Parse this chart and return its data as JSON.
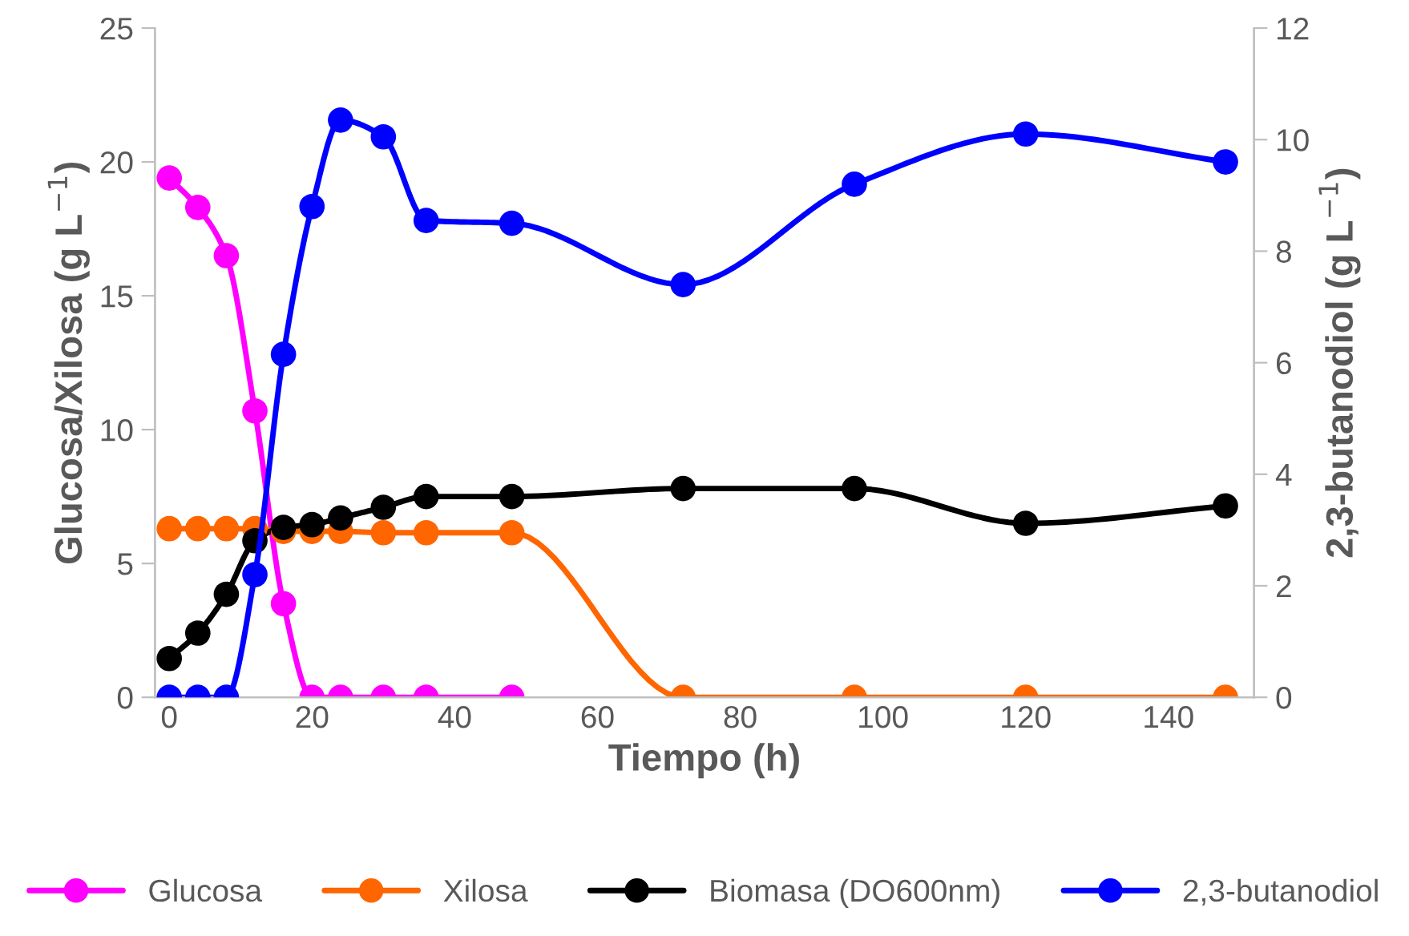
{
  "chart_data": {
    "type": "line",
    "xlabel": "Tiempo (h)",
    "ylabel": "Glucosa/Xilosa (g L$^{−1}$)",
    "y2label": "2,3-butanodiol (g L$^{−1}$)",
    "x": [
      0,
      4,
      8,
      12,
      16,
      20,
      24,
      30,
      36,
      48,
      72,
      96,
      120,
      148
    ],
    "series": [
      {
        "name": "Glucosa",
        "color": "#ff00ff",
        "x": [
          0,
          4,
          8,
          12,
          16,
          20,
          24,
          30,
          36,
          48
        ],
        "values": [
          19.4,
          18.3,
          16.5,
          10.7,
          3.5,
          0,
          0,
          0,
          0,
          0
        ]
      },
      {
        "name": "Xilosa",
        "color": "#ff6600",
        "values": [
          6.3,
          6.3,
          6.3,
          6.3,
          6.2,
          6.2,
          6.2,
          6.15,
          6.15,
          6.15,
          0,
          0,
          0,
          0
        ]
      },
      {
        "name": "Biomasa (DO600nm)",
        "color": "#000000",
        "values": [
          1.45,
          2.4,
          3.85,
          5.85,
          6.35,
          6.45,
          6.7,
          7.1,
          7.5,
          7.5,
          7.8,
          7.8,
          6.5,
          7.15
        ]
      },
      {
        "name": "2,3-butanodiol",
        "color": "#0000ff",
        "axis": "y2",
        "values": [
          0,
          0,
          0,
          2.2,
          6.15,
          8.8,
          10.35,
          10.05,
          8.55,
          8.5,
          7.4,
          9.2,
          10.1,
          9.6
        ]
      }
    ],
    "xlim": [
      -2,
      152
    ],
    "xticks": [
      0,
      20,
      40,
      60,
      80,
      100,
      120,
      140
    ],
    "ylim": [
      0,
      25
    ],
    "yticks": [
      0,
      5,
      10,
      15,
      20,
      25
    ],
    "y2lim": [
      0,
      12
    ],
    "y2ticks": [
      0,
      2,
      4,
      6,
      8,
      10,
      12
    ],
    "marker": "circle",
    "line_style": "solid",
    "grid": false,
    "legend": "bottom"
  }
}
